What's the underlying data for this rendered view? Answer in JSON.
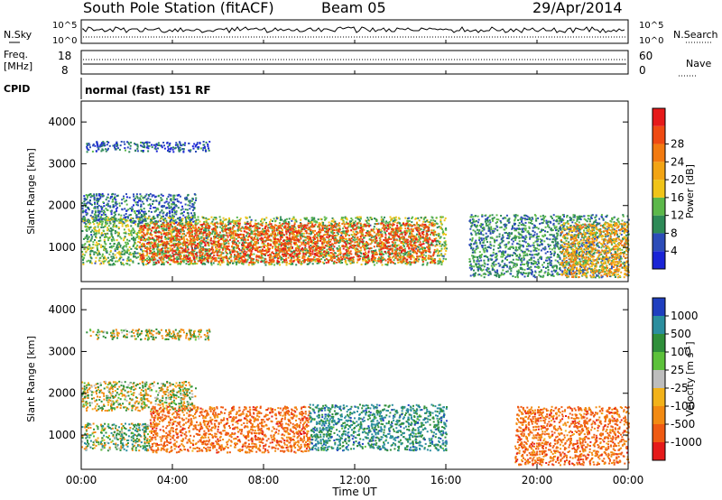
{
  "header": {
    "station_title": "South Pole Station (fitACF)",
    "beam": "Beam 05",
    "date": "29/Apr/2014"
  },
  "strip_noise": {
    "left_label": "N.Sky",
    "right_label": "N.Search",
    "ytick_top": "10^5",
    "ytick_bottom": "10^0"
  },
  "strip_freq": {
    "left_label_1": "Freq.",
    "left_label_2": "[MHz]",
    "ytick_top": "18",
    "ytick_bottom": "8",
    "right_label": "Nave",
    "right_tick_top": "60",
    "right_tick_bottom": "0"
  },
  "cpid": {
    "label": "CPID",
    "mode": "normal (fast) 151 RF"
  },
  "x_axis": {
    "label": "Time UT",
    "ticks": [
      "00:00",
      "04:00",
      "08:00",
      "12:00",
      "16:00",
      "20:00",
      "00:00"
    ]
  },
  "chart_data": [
    {
      "type": "heatmap",
      "title": "",
      "xlabel": "Time UT",
      "ylabel": "Slant Range [km]",
      "xlim": [
        0,
        24
      ],
      "ylim": [
        180,
        4500
      ],
      "yticks": [
        "1000",
        "2000",
        "3000",
        "4000"
      ],
      "colorbar": {
        "label": "Power [dB]",
        "ticks": [
          "4",
          "8",
          "12",
          "16",
          "20",
          "24",
          "28"
        ],
        "range": [
          0,
          32
        ],
        "colors": [
          "#1a24d6",
          "#2c4cb8",
          "#2e8a57",
          "#5cb84a",
          "#f0c419",
          "#f2a414",
          "#f27a10",
          "#ef4a12",
          "#e61a1a"
        ]
      },
      "regions": [
        {
          "t_start": 0.2,
          "t_end": 5.6,
          "r_low": 3300,
          "r_high": 3550,
          "power_db": 6
        },
        {
          "t_start": 0.0,
          "t_end": 5.0,
          "r_low": 1600,
          "r_high": 2300,
          "power_db": 7
        },
        {
          "t_start": 0.0,
          "t_end": 16.0,
          "r_low": 600,
          "r_high": 1750,
          "power_db": 12
        },
        {
          "t_start": 2.5,
          "t_end": 15.5,
          "r_low": 650,
          "r_high": 1600,
          "power_db": 26
        },
        {
          "t_start": 17.0,
          "t_end": 24.0,
          "r_low": 300,
          "r_high": 1800,
          "power_db": 9
        },
        {
          "t_start": 21.0,
          "t_end": 24.0,
          "r_low": 300,
          "r_high": 1600,
          "power_db": 20
        }
      ]
    },
    {
      "type": "heatmap",
      "title": "",
      "xlabel": "Time UT",
      "ylabel": "Slant Range [km]",
      "xlim": [
        0,
        24
      ],
      "ylim": [
        180,
        4500
      ],
      "yticks": [
        "1000",
        "2000",
        "3000",
        "4000"
      ],
      "colorbar": {
        "label": "Velocity [m s^-1]",
        "ticks": [
          "1000",
          "500",
          "100",
          "25",
          "-25",
          "-100",
          "-500",
          "-1000"
        ],
        "colors": [
          "#1f3fbf",
          "#2b8e9e",
          "#2f8f3a",
          "#5cc13a",
          "#bdbdbd",
          "#f2b21a",
          "#f28a12",
          "#ef5a12",
          "#e51a1a"
        ]
      },
      "regions": [
        {
          "t_start": 0.2,
          "t_end": 5.6,
          "r_low": 3300,
          "r_high": 3550,
          "velocity": 0
        },
        {
          "t_start": 0.0,
          "t_end": 5.0,
          "r_low": 1600,
          "r_high": 2300,
          "velocity": 0
        },
        {
          "t_start": 0.0,
          "t_end": 3.0,
          "r_low": 650,
          "r_high": 1300,
          "velocity": 100
        },
        {
          "t_start": 3.0,
          "t_end": 10.0,
          "r_low": 600,
          "r_high": 1700,
          "velocity": -300
        },
        {
          "t_start": 10.0,
          "t_end": 16.0,
          "r_low": 650,
          "r_high": 1750,
          "velocity": 300
        },
        {
          "t_start": 19.0,
          "t_end": 24.0,
          "r_low": 300,
          "r_high": 1700,
          "velocity": -300
        }
      ]
    }
  ]
}
